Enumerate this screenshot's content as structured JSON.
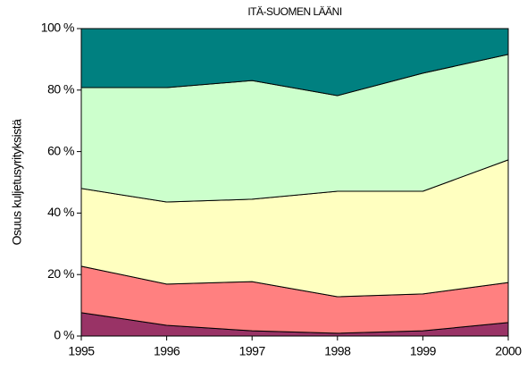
{
  "chart_data": {
    "type": "stacked_area",
    "title": "ITÄ-SUOMEN LÄÄNI",
    "y_label": "Osuus kuljetusyrityksistä",
    "x": [
      1995,
      1996,
      1997,
      1998,
      1999,
      2000
    ],
    "xlim": [
      1995,
      2000
    ],
    "xticks": [
      1995,
      1996,
      1997,
      1998,
      1999,
      2000
    ],
    "ylim": [
      0,
      100
    ],
    "yticks": [
      {
        "value": 0,
        "label": "0 %"
      },
      {
        "value": 20,
        "label": "20 %"
      },
      {
        "value": 40,
        "label": "40 %"
      },
      {
        "value": 60,
        "label": "60 %"
      },
      {
        "value": 80,
        "label": "80 %"
      },
      {
        "value": 100,
        "label": "100 %"
      }
    ],
    "grid": false,
    "series": [
      {
        "color": "#993366",
        "values": [
          7.6,
          3.5,
          1.7,
          0.9,
          1.7,
          4.4
        ]
      },
      {
        "color": "#ff8080",
        "values": [
          15.1,
          13.4,
          16.0,
          11.9,
          12.0,
          13.0
        ]
      },
      {
        "color": "#ffffc0",
        "values": [
          25.3,
          26.7,
          26.8,
          34.3,
          33.4,
          39.9
        ]
      },
      {
        "color": "#ccffcc",
        "values": [
          32.8,
          37.2,
          38.6,
          31.1,
          38.4,
          34.3
        ]
      },
      {
        "color": "#008080",
        "values": [
          19.2,
          19.2,
          16.9,
          21.8,
          14.5,
          8.4
        ]
      }
    ]
  }
}
